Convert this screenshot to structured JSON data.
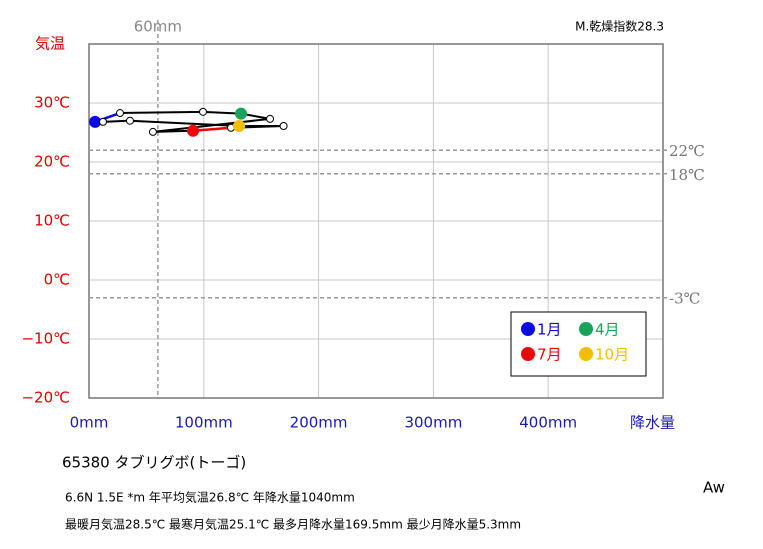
{
  "chart_data": {
    "type": "climograph",
    "station": "65380  タブリグボ(トーゴ)",
    "dryness_index": "M.乾燥指数28.3",
    "info_line1": "6.6N  1.5E *m  年平均気温26.8℃ 年降水量1040mm",
    "info_line2": "最暖月気温28.5℃ 最寒月気温25.1℃ 最多月降水量169.5mm 最少月降水量5.3mm",
    "climate_class": "Aw",
    "y_label": "気温",
    "x_label": "降水量",
    "xlim": [
      0,
      500
    ],
    "ylim": [
      -20,
      40
    ],
    "xticks": [
      {
        "value": 0,
        "label": "0mm"
      },
      {
        "value": 100,
        "label": "100mm"
      },
      {
        "value": 200,
        "label": "200mm"
      },
      {
        "value": 300,
        "label": "300mm"
      },
      {
        "value": 400,
        "label": "400mm"
      }
    ],
    "yticks": [
      {
        "value": -20,
        "label": "−20℃"
      },
      {
        "value": -10,
        "label": "−10℃"
      },
      {
        "value": 0,
        "label": "0℃"
      },
      {
        "value": 10,
        "label": "10℃"
      },
      {
        "value": 20,
        "label": "20℃"
      },
      {
        "value": 30,
        "label": "30℃"
      }
    ],
    "grid": true,
    "ref_lines": [
      {
        "value": 22,
        "label": "22℃"
      },
      {
        "value": 18,
        "label": "18℃"
      },
      {
        "value": -3,
        "label": "-3℃"
      }
    ],
    "ref_vline": {
      "value": 60,
      "label": "60mm"
    },
    "series": [
      {
        "x": [
          5.3,
          27.0,
          99.3,
          132.4,
          157.7,
          55.7,
          90.6,
          123.7,
          169.5,
          130.7,
          35.7,
          12.2
        ],
        "values": [
          26.8,
          28.3,
          28.5,
          28.2,
          27.3,
          25.1,
          25.3,
          25.8,
          26.1,
          26.1,
          27.0,
          26.8
        ],
        "labels": [
          "1月",
          null,
          null,
          "4月",
          null,
          null,
          "7月",
          null,
          null,
          "10月",
          null,
          null
        ],
        "point_colors": [
          "#0a0ae6",
          "#ffffff",
          "#ffffff",
          "#1aa35a",
          "#ffffff",
          "#ffffff",
          "#e60a0a",
          "#ffffff",
          "#ffffff",
          "#f0c000",
          "#ffffff",
          "#ffffff"
        ],
        "line_colors": [
          "#0a0ae6",
          "#000000",
          "#000000",
          "#000000",
          "#000000",
          "#000000",
          "#e60a0a",
          "#000000",
          "#000000",
          "#000000",
          "#000000",
          "#000000"
        ]
      }
    ]
  }
}
